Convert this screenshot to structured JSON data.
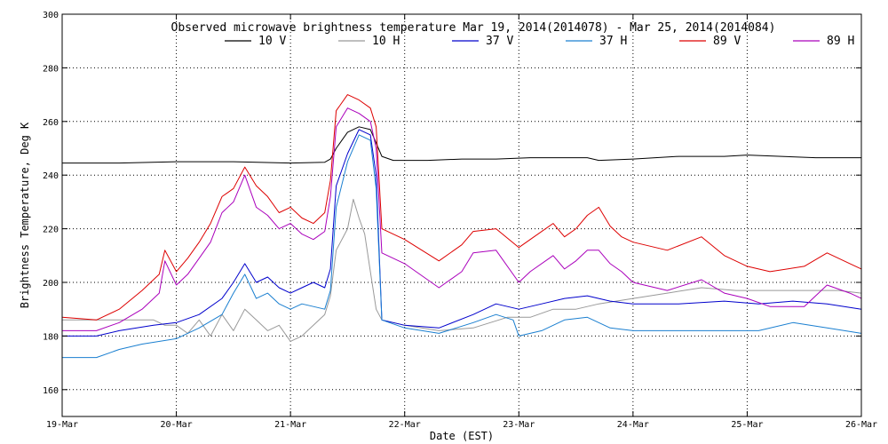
{
  "chart_data": {
    "type": "line",
    "title": "Observed microwave brightness temperature Mar 19, 2014(2014078) - Mar 25, 2014(2014084)",
    "xlabel": "Date (EST)",
    "ylabel": "Brightness Temperature, Deg K",
    "xlim": [
      0,
      7
    ],
    "ylim": [
      150,
      300
    ],
    "grid": true,
    "legend_placement": "top-center",
    "x_tick_values": [
      0,
      1,
      2,
      3,
      4,
      5,
      6,
      7
    ],
    "x_tick_labels": [
      "19-Mar",
      "20-Mar",
      "21-Mar",
      "22-Mar",
      "23-Mar",
      "24-Mar",
      "25-Mar",
      "26-Mar"
    ],
    "y_ticks": [
      160,
      180,
      200,
      220,
      240,
      260,
      280,
      300
    ],
    "series": [
      {
        "name": "10 V",
        "color": "#000000",
        "points": [
          [
            0.0,
            244.5
          ],
          [
            0.5,
            244.5
          ],
          [
            1.0,
            245.0
          ],
          [
            1.5,
            245.0
          ],
          [
            2.0,
            244.5
          ],
          [
            2.3,
            244.8
          ],
          [
            2.35,
            246
          ],
          [
            2.4,
            250
          ],
          [
            2.5,
            256
          ],
          [
            2.6,
            258
          ],
          [
            2.7,
            257
          ],
          [
            2.75,
            252
          ],
          [
            2.8,
            247
          ],
          [
            2.9,
            245.5
          ],
          [
            3.2,
            245.5
          ],
          [
            3.5,
            246
          ],
          [
            3.8,
            246
          ],
          [
            4.1,
            246.5
          ],
          [
            4.4,
            246.5
          ],
          [
            4.6,
            246.5
          ],
          [
            4.7,
            245.5
          ],
          [
            5.0,
            246
          ],
          [
            5.4,
            247
          ],
          [
            5.8,
            247
          ],
          [
            6.0,
            247.5
          ],
          [
            6.3,
            247
          ],
          [
            6.6,
            246.5
          ],
          [
            7.0,
            246.5
          ]
        ]
      },
      {
        "name": "10 H",
        "color": "#999999",
        "points": [
          [
            0.0,
            186
          ],
          [
            0.3,
            186
          ],
          [
            0.6,
            186
          ],
          [
            0.8,
            186
          ],
          [
            0.9,
            184
          ],
          [
            1.0,
            184
          ],
          [
            1.1,
            181
          ],
          [
            1.2,
            186
          ],
          [
            1.3,
            180
          ],
          [
            1.4,
            188
          ],
          [
            1.5,
            182
          ],
          [
            1.6,
            190
          ],
          [
            1.7,
            186
          ],
          [
            1.8,
            182
          ],
          [
            1.9,
            184
          ],
          [
            2.0,
            178
          ],
          [
            2.1,
            180
          ],
          [
            2.2,
            184
          ],
          [
            2.3,
            188
          ],
          [
            2.35,
            195
          ],
          [
            2.4,
            212
          ],
          [
            2.5,
            220
          ],
          [
            2.55,
            231
          ],
          [
            2.6,
            224
          ],
          [
            2.65,
            218
          ],
          [
            2.7,
            204
          ],
          [
            2.75,
            190
          ],
          [
            2.8,
            186
          ],
          [
            3.0,
            184
          ],
          [
            3.3,
            182
          ],
          [
            3.6,
            183
          ],
          [
            3.9,
            187
          ],
          [
            4.1,
            187
          ],
          [
            4.3,
            190
          ],
          [
            4.5,
            190
          ],
          [
            4.7,
            192
          ],
          [
            5.0,
            194
          ],
          [
            5.3,
            196
          ],
          [
            5.6,
            198
          ],
          [
            5.9,
            197
          ],
          [
            6.2,
            197
          ],
          [
            6.5,
            197
          ],
          [
            6.8,
            197
          ],
          [
            7.0,
            196
          ]
        ]
      },
      {
        "name": "37 V",
        "color": "#0000cc",
        "points": [
          [
            0.0,
            180
          ],
          [
            0.3,
            180
          ],
          [
            0.5,
            182
          ],
          [
            0.8,
            184
          ],
          [
            1.0,
            185
          ],
          [
            1.2,
            188
          ],
          [
            1.4,
            194
          ],
          [
            1.5,
            200
          ],
          [
            1.6,
            207
          ],
          [
            1.7,
            200
          ],
          [
            1.8,
            202
          ],
          [
            1.9,
            198
          ],
          [
            2.0,
            196
          ],
          [
            2.1,
            198
          ],
          [
            2.2,
            200
          ],
          [
            2.3,
            198
          ],
          [
            2.35,
            205
          ],
          [
            2.4,
            236
          ],
          [
            2.5,
            248
          ],
          [
            2.6,
            257
          ],
          [
            2.7,
            255
          ],
          [
            2.75,
            240
          ],
          [
            2.8,
            186
          ],
          [
            3.0,
            184
          ],
          [
            3.3,
            183
          ],
          [
            3.6,
            188
          ],
          [
            3.8,
            192
          ],
          [
            4.0,
            190
          ],
          [
            4.2,
            192
          ],
          [
            4.4,
            194
          ],
          [
            4.6,
            195
          ],
          [
            4.8,
            193
          ],
          [
            5.0,
            192
          ],
          [
            5.4,
            192
          ],
          [
            5.8,
            193
          ],
          [
            6.1,
            192
          ],
          [
            6.4,
            193
          ],
          [
            6.7,
            192
          ],
          [
            7.0,
            190
          ]
        ]
      },
      {
        "name": "37 H",
        "color": "#1a7fd0",
        "points": [
          [
            0.0,
            172
          ],
          [
            0.3,
            172
          ],
          [
            0.5,
            175
          ],
          [
            0.7,
            177
          ],
          [
            1.0,
            179
          ],
          [
            1.2,
            183
          ],
          [
            1.4,
            188
          ],
          [
            1.5,
            196
          ],
          [
            1.6,
            203
          ],
          [
            1.7,
            194
          ],
          [
            1.8,
            196
          ],
          [
            1.9,
            192
          ],
          [
            2.0,
            190
          ],
          [
            2.1,
            192
          ],
          [
            2.2,
            191
          ],
          [
            2.3,
            190
          ],
          [
            2.35,
            197
          ],
          [
            2.4,
            228
          ],
          [
            2.5,
            245
          ],
          [
            2.6,
            255
          ],
          [
            2.7,
            253
          ],
          [
            2.75,
            235
          ],
          [
            2.8,
            186
          ],
          [
            3.0,
            183
          ],
          [
            3.3,
            181
          ],
          [
            3.6,
            185
          ],
          [
            3.8,
            188
          ],
          [
            3.95,
            186
          ],
          [
            4.0,
            180
          ],
          [
            4.2,
            182
          ],
          [
            4.4,
            186
          ],
          [
            4.6,
            187
          ],
          [
            4.8,
            183
          ],
          [
            5.0,
            182
          ],
          [
            5.4,
            182
          ],
          [
            5.8,
            182
          ],
          [
            6.1,
            182
          ],
          [
            6.4,
            185
          ],
          [
            6.7,
            183
          ],
          [
            7.0,
            181
          ]
        ]
      },
      {
        "name": "89 V",
        "color": "#dd0000",
        "points": [
          [
            0.0,
            187
          ],
          [
            0.3,
            186
          ],
          [
            0.5,
            190
          ],
          [
            0.7,
            197
          ],
          [
            0.85,
            203
          ],
          [
            0.9,
            212
          ],
          [
            1.0,
            204
          ],
          [
            1.1,
            209
          ],
          [
            1.2,
            215
          ],
          [
            1.3,
            222
          ],
          [
            1.4,
            232
          ],
          [
            1.5,
            235
          ],
          [
            1.6,
            243
          ],
          [
            1.7,
            236
          ],
          [
            1.8,
            232
          ],
          [
            1.9,
            226
          ],
          [
            2.0,
            228
          ],
          [
            2.1,
            224
          ],
          [
            2.2,
            222
          ],
          [
            2.3,
            226
          ],
          [
            2.35,
            238
          ],
          [
            2.4,
            264
          ],
          [
            2.5,
            270
          ],
          [
            2.6,
            268
          ],
          [
            2.7,
            265
          ],
          [
            2.75,
            258
          ],
          [
            2.8,
            220
          ],
          [
            3.0,
            216
          ],
          [
            3.3,
            208
          ],
          [
            3.5,
            214
          ],
          [
            3.6,
            219
          ],
          [
            3.8,
            220
          ],
          [
            4.0,
            213
          ],
          [
            4.1,
            216
          ],
          [
            4.3,
            222
          ],
          [
            4.4,
            217
          ],
          [
            4.5,
            220
          ],
          [
            4.6,
            225
          ],
          [
            4.7,
            228
          ],
          [
            4.8,
            221
          ],
          [
            4.9,
            217
          ],
          [
            5.0,
            215
          ],
          [
            5.3,
            212
          ],
          [
            5.6,
            217
          ],
          [
            5.8,
            210
          ],
          [
            6.0,
            206
          ],
          [
            6.2,
            204
          ],
          [
            6.5,
            206
          ],
          [
            6.7,
            211
          ],
          [
            6.9,
            207
          ],
          [
            7.0,
            205
          ]
        ]
      },
      {
        "name": "89 H",
        "color": "#aa00bb",
        "points": [
          [
            0.0,
            182
          ],
          [
            0.3,
            182
          ],
          [
            0.5,
            185
          ],
          [
            0.7,
            190
          ],
          [
            0.85,
            196
          ],
          [
            0.9,
            208
          ],
          [
            1.0,
            199
          ],
          [
            1.1,
            203
          ],
          [
            1.2,
            209
          ],
          [
            1.3,
            215
          ],
          [
            1.4,
            226
          ],
          [
            1.5,
            230
          ],
          [
            1.6,
            240
          ],
          [
            1.7,
            228
          ],
          [
            1.8,
            225
          ],
          [
            1.9,
            220
          ],
          [
            2.0,
            222
          ],
          [
            2.1,
            218
          ],
          [
            2.2,
            216
          ],
          [
            2.3,
            219
          ],
          [
            2.35,
            232
          ],
          [
            2.4,
            258
          ],
          [
            2.5,
            265
          ],
          [
            2.6,
            263
          ],
          [
            2.7,
            260
          ],
          [
            2.75,
            250
          ],
          [
            2.8,
            211
          ],
          [
            3.0,
            207
          ],
          [
            3.3,
            198
          ],
          [
            3.5,
            204
          ],
          [
            3.6,
            211
          ],
          [
            3.8,
            212
          ],
          [
            4.0,
            200
          ],
          [
            4.1,
            204
          ],
          [
            4.3,
            210
          ],
          [
            4.4,
            205
          ],
          [
            4.5,
            208
          ],
          [
            4.6,
            212
          ],
          [
            4.7,
            212
          ],
          [
            4.8,
            207
          ],
          [
            4.9,
            204
          ],
          [
            5.0,
            200
          ],
          [
            5.3,
            197
          ],
          [
            5.6,
            201
          ],
          [
            5.8,
            196
          ],
          [
            6.0,
            194
          ],
          [
            6.2,
            191
          ],
          [
            6.5,
            191
          ],
          [
            6.7,
            199
          ],
          [
            6.9,
            196
          ],
          [
            7.0,
            194
          ]
        ]
      }
    ]
  }
}
